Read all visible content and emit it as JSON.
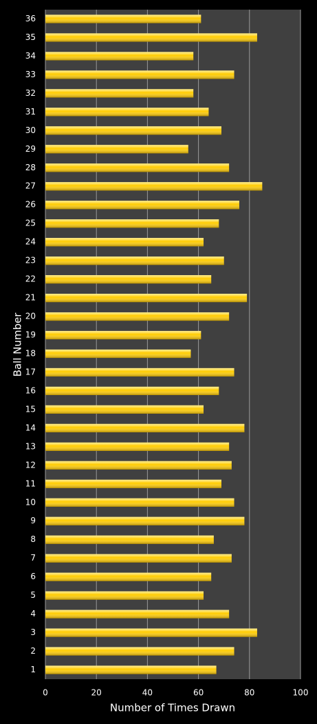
{
  "chart_data": {
    "type": "barh",
    "x_label": "Number of Times Drawn",
    "y_label": "Ball Number",
    "categories": [
      "1",
      "2",
      "3",
      "4",
      "5",
      "6",
      "7",
      "8",
      "9",
      "10",
      "11",
      "12",
      "13",
      "14",
      "15",
      "16",
      "17",
      "18",
      "19",
      "20",
      "21",
      "22",
      "23",
      "24",
      "25",
      "26",
      "27",
      "28",
      "29",
      "30",
      "31",
      "32",
      "33",
      "34",
      "35",
      "36"
    ],
    "values": [
      67,
      74,
      83,
      72,
      62,
      65,
      73,
      66,
      78,
      74,
      69,
      73,
      72,
      78,
      62,
      68,
      74,
      57,
      61,
      72,
      79,
      65,
      70,
      62,
      68,
      76,
      85,
      72,
      56,
      69,
      64,
      58,
      74,
      58,
      83,
      61
    ],
    "color": "#ffcc00",
    "xlim": [
      0,
      100
    ],
    "xticks": [
      0,
      20,
      40,
      60,
      80,
      100
    ],
    "grid": true
  }
}
